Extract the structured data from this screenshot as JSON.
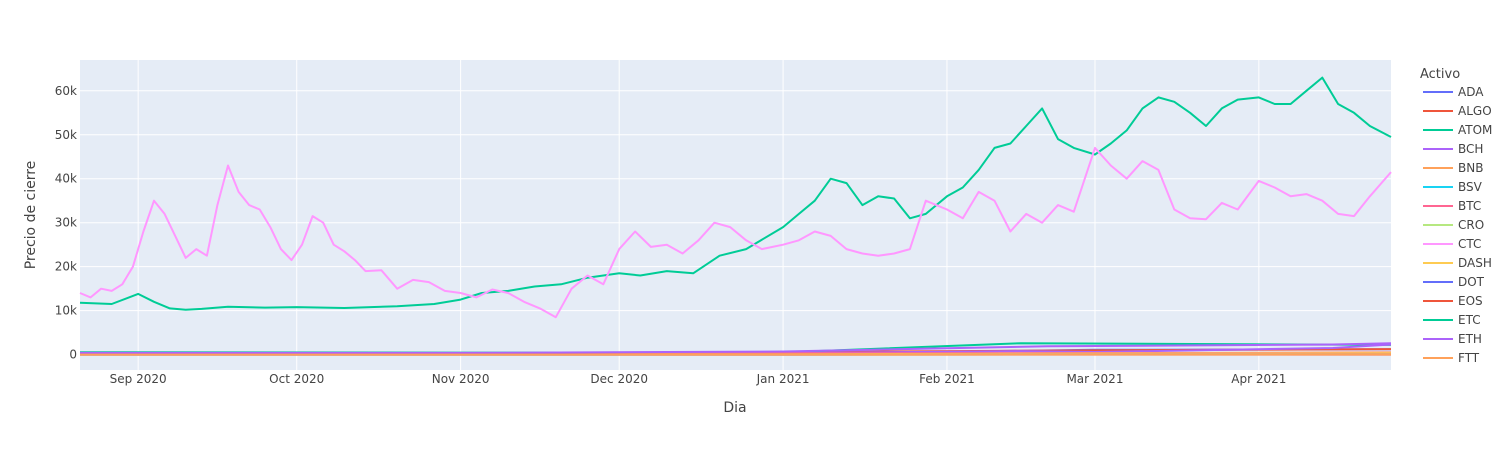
{
  "chart_data": {
    "type": "line",
    "title": "",
    "xlabel": "Dia",
    "ylabel": "Precio de cierre",
    "xlim": [
      "2020-08-21",
      "2021-04-26"
    ],
    "ylim": [
      -3500,
      67000
    ],
    "grid": true,
    "legend_title": "Activo",
    "legend_position": "right",
    "x_ticks": [
      {
        "date": "2020-09-01",
        "label": "Sep 2020"
      },
      {
        "date": "2020-10-01",
        "label": "Oct 2020"
      },
      {
        "date": "2020-11-01",
        "label": "Nov 2020"
      },
      {
        "date": "2020-12-01",
        "label": "Dec 2020"
      },
      {
        "date": "2021-01-01",
        "label": "Jan 2021"
      },
      {
        "date": "2021-02-01",
        "label": "Feb 2021"
      },
      {
        "date": "2021-03-01",
        "label": "Mar 2021"
      },
      {
        "date": "2021-04-01",
        "label": "Apr 2021"
      }
    ],
    "y_ticks": [
      {
        "value": 0,
        "label": "0"
      },
      {
        "value": 10000,
        "label": "10k"
      },
      {
        "value": 20000,
        "label": "20k"
      },
      {
        "value": 30000,
        "label": "30k"
      },
      {
        "value": 40000,
        "label": "40k"
      },
      {
        "value": 50000,
        "label": "50k"
      },
      {
        "value": 60000,
        "label": "60k"
      }
    ],
    "series": [
      {
        "name": "ADA",
        "color": "#636efa",
        "x": [
          "2020-08-21",
          "2020-11-01",
          "2021-01-01",
          "2021-03-01",
          "2021-04-26"
        ],
        "y": [
          110,
          100,
          180,
          1100,
          1200
        ]
      },
      {
        "name": "ALGO",
        "color": "#EF553B",
        "x": [
          "2020-08-21",
          "2020-12-01",
          "2021-02-15",
          "2021-04-26"
        ],
        "y": [
          350,
          300,
          900,
          1250
        ]
      },
      {
        "name": "ATOM",
        "color": "#00cc96",
        "x": [
          "2020-08-21",
          "2020-11-01",
          "2021-01-01",
          "2021-02-15",
          "2021-04-26"
        ],
        "y": [
          550,
          450,
          500,
          2600,
          2200
        ]
      },
      {
        "name": "BCH",
        "color": "#ab63fa",
        "x": [
          "2020-08-21",
          "2020-11-01",
          "2021-01-01",
          "2021-02-15",
          "2021-03-01",
          "2021-04-15",
          "2021-04-26"
        ],
        "y": [
          300,
          250,
          350,
          800,
          600,
          1500,
          2300
        ]
      },
      {
        "name": "BNB",
        "color": "#FFA15A",
        "x": [
          "2020-08-21",
          "2021-01-01",
          "2021-02-20",
          "2021-04-26"
        ],
        "y": [
          20,
          40,
          300,
          500
        ]
      },
      {
        "name": "BSV",
        "color": "#19d3f3",
        "x": [
          "2020-08-21",
          "2021-01-01",
          "2021-04-26"
        ],
        "y": [
          220,
          180,
          260
        ]
      },
      {
        "name": "BTC",
        "color": "#FF6692",
        "x": [
          "2020-08-21",
          "2020-11-01",
          "2021-01-01",
          "2021-04-26"
        ],
        "y": [
          200,
          200,
          300,
          400
        ]
      },
      {
        "name": "CRO",
        "color": "#B6E880",
        "x": [
          "2020-08-21",
          "2021-01-01",
          "2021-04-26"
        ],
        "y": [
          10,
          10,
          30
        ]
      },
      {
        "name": "CTC",
        "color": "#FF97FF",
        "x": [
          "2020-08-21",
          "2020-08-23",
          "2020-08-25",
          "2020-08-27",
          "2020-08-29",
          "2020-08-31",
          "2020-09-02",
          "2020-09-04",
          "2020-09-06",
          "2020-09-08",
          "2020-09-10",
          "2020-09-12",
          "2020-09-14",
          "2020-09-16",
          "2020-09-18",
          "2020-09-20",
          "2020-09-22",
          "2020-09-24",
          "2020-09-26",
          "2020-09-28",
          "2020-09-30",
          "2020-10-02",
          "2020-10-04",
          "2020-10-06",
          "2020-10-08",
          "2020-10-10",
          "2020-10-12",
          "2020-10-14",
          "2020-10-17",
          "2020-10-20",
          "2020-10-23",
          "2020-10-26",
          "2020-10-29",
          "2020-11-01",
          "2020-11-04",
          "2020-11-07",
          "2020-11-10",
          "2020-11-13",
          "2020-11-16",
          "2020-11-19",
          "2020-11-22",
          "2020-11-25",
          "2020-11-28",
          "2020-12-01",
          "2020-12-04",
          "2020-12-07",
          "2020-12-10",
          "2020-12-13",
          "2020-12-16",
          "2020-12-19",
          "2020-12-22",
          "2020-12-25",
          "2020-12-28",
          "2021-01-01",
          "2021-01-04",
          "2021-01-07",
          "2021-01-10",
          "2021-01-13",
          "2021-01-16",
          "2021-01-19",
          "2021-01-22",
          "2021-01-25",
          "2021-01-28",
          "2021-02-01",
          "2021-02-04",
          "2021-02-07",
          "2021-02-10",
          "2021-02-13",
          "2021-02-16",
          "2021-02-19",
          "2021-02-22",
          "2021-02-25",
          "2021-03-01",
          "2021-03-04",
          "2021-03-07",
          "2021-03-10",
          "2021-03-13",
          "2021-03-16",
          "2021-03-19",
          "2021-03-22",
          "2021-03-25",
          "2021-03-28",
          "2021-04-01",
          "2021-04-04",
          "2021-04-07",
          "2021-04-10",
          "2021-04-13",
          "2021-04-16",
          "2021-04-19",
          "2021-04-22",
          "2021-04-26"
        ],
        "y": [
          14000,
          13000,
          15000,
          14500,
          16000,
          20000,
          28000,
          35000,
          32000,
          27000,
          22000,
          24000,
          22500,
          34000,
          43000,
          37000,
          34000,
          33000,
          29000,
          24000,
          21500,
          25000,
          31500,
          30000,
          25000,
          23500,
          21500,
          19000,
          19200,
          15000,
          17000,
          16500,
          14500,
          14000,
          13000,
          14800,
          14000,
          12000,
          10500,
          8500,
          15000,
          18000,
          16000,
          24000,
          28000,
          24500,
          25000,
          23000,
          26000,
          30000,
          29000,
          26000,
          24000,
          25000,
          26000,
          28000,
          27000,
          24000,
          23000,
          22500,
          23000,
          24000,
          35000,
          33000,
          31000,
          37000,
          35000,
          28000,
          32000,
          30000,
          34000,
          32500,
          47000,
          43000,
          40000,
          44000,
          42000,
          33000,
          31000,
          30800,
          34500,
          33000,
          39500,
          38000,
          36000,
          36500,
          35000,
          32000,
          31500,
          36000,
          41500
        ]
      },
      {
        "name": "DASH",
        "color": "#FECB52",
        "x": [
          "2020-08-21",
          "2021-01-01",
          "2021-04-26"
        ],
        "y": [
          90,
          100,
          350
        ]
      },
      {
        "name": "DOT",
        "color": "#636efa",
        "x": [
          "2020-08-21",
          "2021-01-01",
          "2021-02-20",
          "2021-04-26"
        ],
        "y": [
          5,
          10,
          40,
          40
        ]
      },
      {
        "name": "EOS",
        "color": "#EF553B",
        "x": [
          "2020-08-21",
          "2021-01-01",
          "2021-04-26"
        ],
        "y": [
          4,
          3,
          8
        ]
      },
      {
        "name": "ETC",
        "color": "#00cc96",
        "x": [
          "2020-08-21",
          "2020-08-27",
          "2020-09-01",
          "2020-09-04",
          "2020-09-07",
          "2020-09-10",
          "2020-09-13",
          "2020-09-18",
          "2020-09-25",
          "2020-10-01",
          "2020-10-10",
          "2020-10-20",
          "2020-10-27",
          "2020-11-01",
          "2020-11-05",
          "2020-11-10",
          "2020-11-15",
          "2020-11-20",
          "2020-11-25",
          "2020-12-01",
          "2020-12-05",
          "2020-12-10",
          "2020-12-15",
          "2020-12-20",
          "2020-12-25",
          "2021-01-01",
          "2021-01-04",
          "2021-01-07",
          "2021-01-10",
          "2021-01-13",
          "2021-01-16",
          "2021-01-19",
          "2021-01-22",
          "2021-01-25",
          "2021-01-28",
          "2021-02-01",
          "2021-02-04",
          "2021-02-07",
          "2021-02-10",
          "2021-02-13",
          "2021-02-16",
          "2021-02-19",
          "2021-02-22",
          "2021-02-25",
          "2021-03-01",
          "2021-03-04",
          "2021-03-07",
          "2021-03-10",
          "2021-03-13",
          "2021-03-16",
          "2021-03-19",
          "2021-03-22",
          "2021-03-25",
          "2021-03-28",
          "2021-04-01",
          "2021-04-04",
          "2021-04-07",
          "2021-04-10",
          "2021-04-13",
          "2021-04-16",
          "2021-04-19",
          "2021-04-22",
          "2021-04-26"
        ],
        "y": [
          11800,
          11500,
          13800,
          12000,
          10500,
          10200,
          10400,
          10900,
          10700,
          10800,
          10600,
          11000,
          11500,
          12500,
          14000,
          14500,
          15500,
          16000,
          17500,
          18500,
          18000,
          19000,
          18500,
          22500,
          24000,
          29000,
          32000,
          35000,
          40000,
          39000,
          34000,
          36000,
          35500,
          31000,
          32000,
          36000,
          38000,
          42000,
          47000,
          48000,
          52000,
          56000,
          49000,
          47000,
          45500,
          48000,
          51000,
          56000,
          58500,
          57500,
          55000,
          52000,
          56000,
          58000,
          58500,
          57000,
          57000,
          60000,
          63000,
          57000,
          55000,
          52000,
          49500
        ]
      },
      {
        "name": "ETH",
        "color": "#ab63fa",
        "x": [
          "2020-08-21",
          "2020-11-01",
          "2021-01-01",
          "2021-02-20",
          "2021-04-15",
          "2021-04-26"
        ],
        "y": [
          400,
          400,
          700,
          1900,
          2300,
          2600
        ]
      },
      {
        "name": "FTT",
        "color": "#FFA15A",
        "x": [
          "2020-08-21",
          "2021-01-01",
          "2021-04-26"
        ],
        "y": [
          3,
          5,
          40
        ]
      }
    ]
  }
}
